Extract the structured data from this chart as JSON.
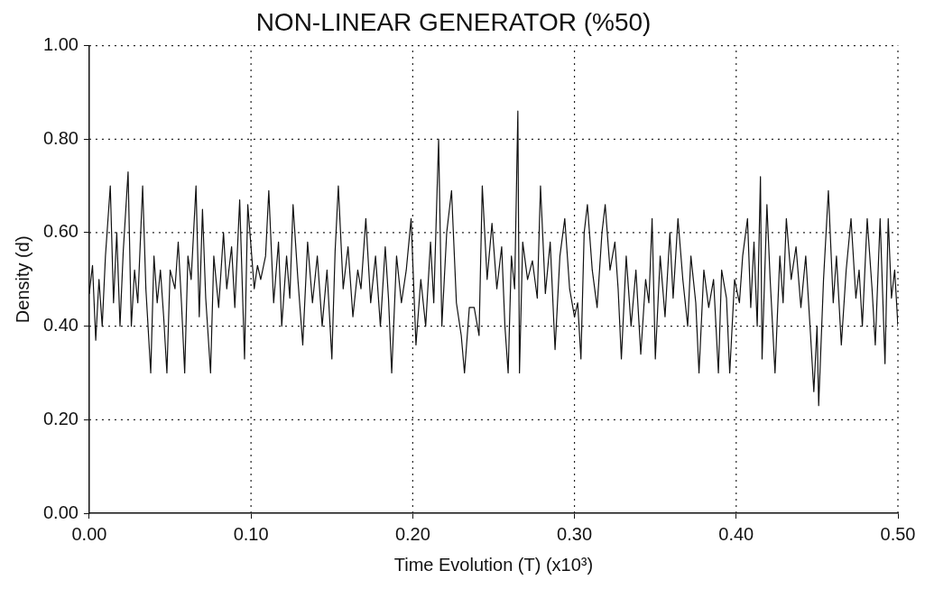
{
  "chart_data": {
    "type": "line",
    "title": "NON-LINEAR GENERATOR (%50)",
    "xlabel": "Time Evolution (T) (x10³)",
    "ylabel": "Density (d)",
    "xlim": [
      0,
      0.5
    ],
    "xticks": [
      {
        "value": 0,
        "label": "0.00"
      },
      {
        "value": 0.1,
        "label": "0.10"
      },
      {
        "value": 0.2,
        "label": "0.20"
      },
      {
        "value": 0.3,
        "label": "0.30"
      },
      {
        "value": 0.4,
        "label": "0.40"
      },
      {
        "value": 0.5,
        "label": "0.50"
      }
    ],
    "ylim": [
      0,
      1
    ],
    "yticks": [
      {
        "value": 0,
        "label": "0.00"
      },
      {
        "value": 0.2,
        "label": "0.20"
      },
      {
        "value": 0.4,
        "label": "0.40"
      },
      {
        "value": 0.6,
        "label": "0.60"
      },
      {
        "value": 0.8,
        "label": "0.80"
      },
      {
        "value": 1,
        "label": "1.00"
      }
    ],
    "grid": true,
    "legend": false,
    "marker": "none",
    "line_style": "solid",
    "series": [
      {
        "color": "#111111",
        "x": [
          0.0,
          0.002,
          0.004,
          0.006,
          0.008,
          0.01,
          0.013,
          0.015,
          0.017,
          0.019,
          0.021,
          0.024,
          0.026,
          0.028,
          0.03,
          0.033,
          0.035,
          0.038,
          0.04,
          0.042,
          0.044,
          0.046,
          0.048,
          0.05,
          0.053,
          0.055,
          0.057,
          0.059,
          0.061,
          0.063,
          0.066,
          0.068,
          0.07,
          0.072,
          0.075,
          0.077,
          0.08,
          0.083,
          0.085,
          0.088,
          0.09,
          0.093,
          0.096,
          0.098,
          0.102,
          0.104,
          0.106,
          0.109,
          0.111,
          0.114,
          0.117,
          0.119,
          0.122,
          0.124,
          0.126,
          0.129,
          0.132,
          0.135,
          0.138,
          0.141,
          0.144,
          0.147,
          0.15,
          0.152,
          0.154,
          0.157,
          0.16,
          0.163,
          0.166,
          0.168,
          0.171,
          0.174,
          0.177,
          0.18,
          0.183,
          0.185,
          0.187,
          0.19,
          0.193,
          0.196,
          0.199,
          0.202,
          0.205,
          0.208,
          0.211,
          0.213,
          0.216,
          0.218,
          0.221,
          0.224,
          0.227,
          0.23,
          0.232,
          0.235,
          0.238,
          0.241,
          0.243,
          0.246,
          0.249,
          0.252,
          0.255,
          0.257,
          0.259,
          0.261,
          0.263,
          0.265,
          0.266,
          0.268,
          0.271,
          0.274,
          0.277,
          0.279,
          0.282,
          0.285,
          0.288,
          0.291,
          0.294,
          0.297,
          0.3,
          0.302,
          0.304,
          0.306,
          0.308,
          0.311,
          0.314,
          0.317,
          0.319,
          0.322,
          0.325,
          0.327,
          0.329,
          0.332,
          0.335,
          0.338,
          0.341,
          0.344,
          0.346,
          0.348,
          0.35,
          0.353,
          0.356,
          0.359,
          0.361,
          0.364,
          0.367,
          0.37,
          0.372,
          0.375,
          0.377,
          0.38,
          0.383,
          0.386,
          0.389,
          0.391,
          0.394,
          0.396,
          0.399,
          0.402,
          0.404,
          0.407,
          0.409,
          0.411,
          0.413,
          0.415,
          0.416,
          0.419,
          0.421,
          0.424,
          0.427,
          0.429,
          0.431,
          0.434,
          0.437,
          0.44,
          0.443,
          0.446,
          0.448,
          0.45,
          0.451,
          0.454,
          0.457,
          0.46,
          0.462,
          0.465,
          0.468,
          0.471,
          0.474,
          0.476,
          0.478,
          0.481,
          0.484,
          0.486,
          0.489,
          0.492,
          0.494,
          0.496,
          0.498,
          0.5
        ],
        "values": [
          0.47,
          0.53,
          0.37,
          0.5,
          0.4,
          0.55,
          0.7,
          0.45,
          0.6,
          0.4,
          0.56,
          0.73,
          0.4,
          0.52,
          0.45,
          0.7,
          0.48,
          0.3,
          0.55,
          0.45,
          0.52,
          0.42,
          0.3,
          0.52,
          0.48,
          0.58,
          0.45,
          0.3,
          0.55,
          0.5,
          0.7,
          0.42,
          0.65,
          0.46,
          0.3,
          0.55,
          0.44,
          0.6,
          0.48,
          0.57,
          0.44,
          0.67,
          0.33,
          0.66,
          0.48,
          0.53,
          0.5,
          0.55,
          0.69,
          0.45,
          0.58,
          0.4,
          0.55,
          0.46,
          0.66,
          0.5,
          0.36,
          0.58,
          0.45,
          0.55,
          0.4,
          0.52,
          0.33,
          0.56,
          0.7,
          0.48,
          0.57,
          0.42,
          0.52,
          0.48,
          0.63,
          0.45,
          0.55,
          0.4,
          0.57,
          0.46,
          0.3,
          0.55,
          0.45,
          0.52,
          0.63,
          0.36,
          0.5,
          0.4,
          0.58,
          0.45,
          0.8,
          0.4,
          0.6,
          0.69,
          0.45,
          0.38,
          0.3,
          0.44,
          0.44,
          0.38,
          0.7,
          0.5,
          0.62,
          0.48,
          0.57,
          0.4,
          0.3,
          0.55,
          0.48,
          0.86,
          0.3,
          0.58,
          0.5,
          0.54,
          0.46,
          0.7,
          0.47,
          0.58,
          0.35,
          0.55,
          0.63,
          0.48,
          0.42,
          0.45,
          0.33,
          0.6,
          0.66,
          0.52,
          0.44,
          0.6,
          0.66,
          0.52,
          0.58,
          0.48,
          0.33,
          0.55,
          0.4,
          0.52,
          0.34,
          0.5,
          0.45,
          0.63,
          0.33,
          0.55,
          0.42,
          0.6,
          0.46,
          0.63,
          0.5,
          0.4,
          0.55,
          0.45,
          0.3,
          0.52,
          0.44,
          0.5,
          0.3,
          0.52,
          0.46,
          0.3,
          0.5,
          0.45,
          0.55,
          0.63,
          0.44,
          0.58,
          0.4,
          0.72,
          0.33,
          0.66,
          0.5,
          0.3,
          0.55,
          0.45,
          0.63,
          0.5,
          0.57,
          0.44,
          0.55,
          0.38,
          0.26,
          0.4,
          0.23,
          0.5,
          0.69,
          0.45,
          0.55,
          0.36,
          0.52,
          0.63,
          0.46,
          0.52,
          0.4,
          0.63,
          0.48,
          0.36,
          0.63,
          0.32,
          0.63,
          0.46,
          0.52,
          0.4
        ]
      }
    ]
  }
}
